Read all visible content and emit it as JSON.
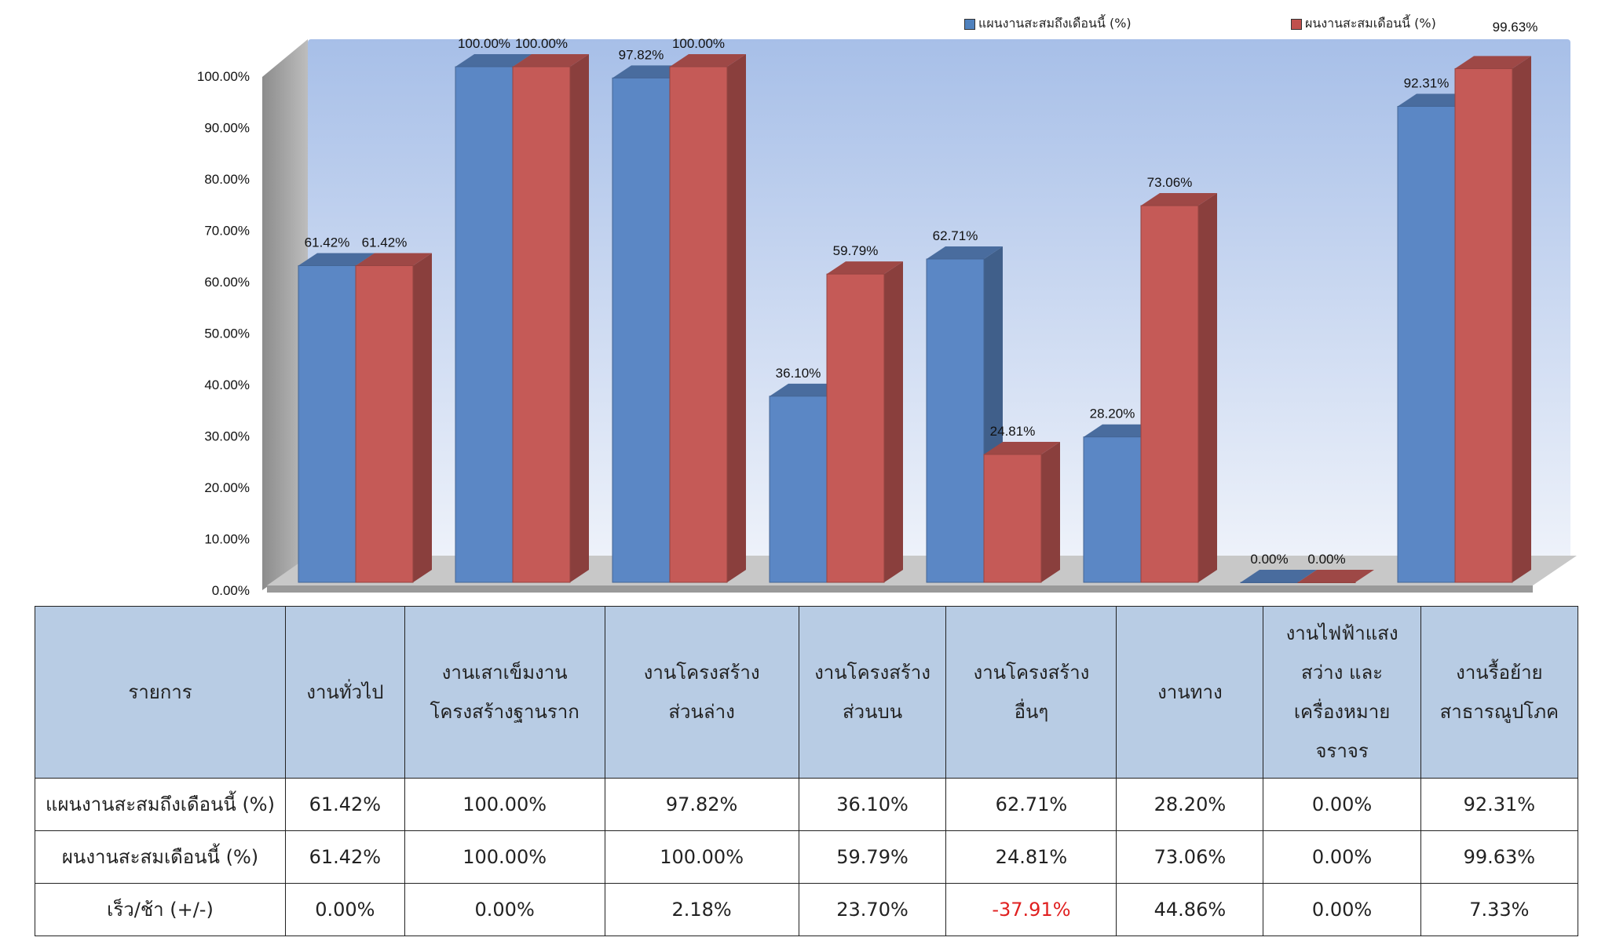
{
  "chart_data": {
    "type": "bar",
    "categories": [
      "งานทั่วไป",
      "งานเสาเข็มงานโครงสร้างฐานราก",
      "งานโครงสร้างส่วนล่าง",
      "งานโครงสร้างส่วนบน",
      "งานโครงสร้างอื่นๆ",
      "งานทาง",
      "งานไฟฟ้าแสงสว่าง และเครื่องหมายจราจร",
      "งานรื้อย้ายสาธารณูปโภค"
    ],
    "series": [
      {
        "name": "แผนงานสะสมถึงเดือนนี้ (%)",
        "color": "#5b87c5",
        "values": [
          61.42,
          100.0,
          97.82,
          36.1,
          62.71,
          28.2,
          0.0,
          92.31
        ],
        "labels": [
          "61.42%",
          "100.00%",
          "97.82%",
          "36.10%",
          "62.71%",
          "28.20%",
          "0.00%",
          "92.31%"
        ]
      },
      {
        "name": "ผนงานสะสมเดือนนี้ (%)",
        "color": "#c55a57",
        "values": [
          61.42,
          100.0,
          100.0,
          59.79,
          24.81,
          73.06,
          0.0,
          99.63
        ],
        "labels": [
          "61.42%",
          "100.00%",
          "100.00%",
          "59.79%",
          "24.81%",
          "73.06%",
          "0.00%",
          "99.63%"
        ]
      }
    ],
    "ylim": [
      0,
      100
    ],
    "yticks": [
      "0.00%",
      "10.00%",
      "20.00%",
      "30.00%",
      "40.00%",
      "50.00%",
      "60.00%",
      "70.00%",
      "80.00%",
      "90.00%",
      "100.00%"
    ],
    "legend": "top-right",
    "style": "3d-clustered-column"
  },
  "table": {
    "headers": [
      "รายการ",
      "งานทั่วไป",
      "งานเสาเข็มงาน\nโครงสร้างฐานราก",
      "งานโครงสร้าง\nส่วนล่าง",
      "งานโครงสร้าง\nส่วนบน",
      "งานโครงสร้าง\nอื่นๆ",
      "งานทาง",
      "งานไฟฟ้าแสง\nสว่าง และ\nเครื่องหมาย\nจราจร",
      "งานรื้อย้าย\nสาธารณูปโภค"
    ],
    "rows": [
      [
        "แผนงานสะสมถึงเดือนนี้ (%)",
        "61.42%",
        "100.00%",
        "97.82%",
        "36.10%",
        "62.71%",
        "28.20%",
        "0.00%",
        "92.31%"
      ],
      [
        "ผนงานสะสมเดือนนี้ (%)",
        "61.42%",
        "100.00%",
        "100.00%",
        "59.79%",
        "24.81%",
        "73.06%",
        "0.00%",
        "99.63%"
      ],
      [
        "เร็ว/ช้า (+/-)",
        "0.00%",
        "0.00%",
        "2.18%",
        "23.70%",
        "-37.91%",
        "44.86%",
        "0.00%",
        "7.33%"
      ]
    ],
    "negative_color": "#e02020"
  }
}
